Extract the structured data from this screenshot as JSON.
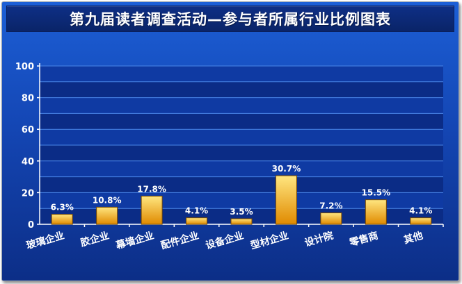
{
  "chart_data": {
    "type": "bar",
    "title": "第九届读者调查活动—参与者所属行业比例图表",
    "categories": [
      "玻璃企业",
      "胶企业",
      "幕墙企业",
      "配件企业",
      "设备企业",
      "型材企业",
      "设计院",
      "零售商",
      "其他"
    ],
    "values": [
      6.3,
      10.8,
      17.8,
      4.1,
      3.5,
      30.7,
      7.2,
      15.5,
      4.1
    ],
    "value_labels": [
      "6.3%",
      "10.8%",
      "17.8%",
      "4.1%",
      "3.5%",
      "30.7%",
      "7.2%",
      "15.5%",
      "4.1%"
    ],
    "ylim": [
      0,
      100
    ],
    "yticks": [
      0,
      20,
      40,
      60,
      80,
      100
    ],
    "grid": true,
    "colors": {
      "bar_top": "#ffe680",
      "bar_bottom": "#e08a00",
      "bar_edge": "#7a4a00",
      "plot_band_dark": "#0b2c86",
      "plot_band_light": "#0f3aa3",
      "gridline": "#4a86e8"
    }
  }
}
